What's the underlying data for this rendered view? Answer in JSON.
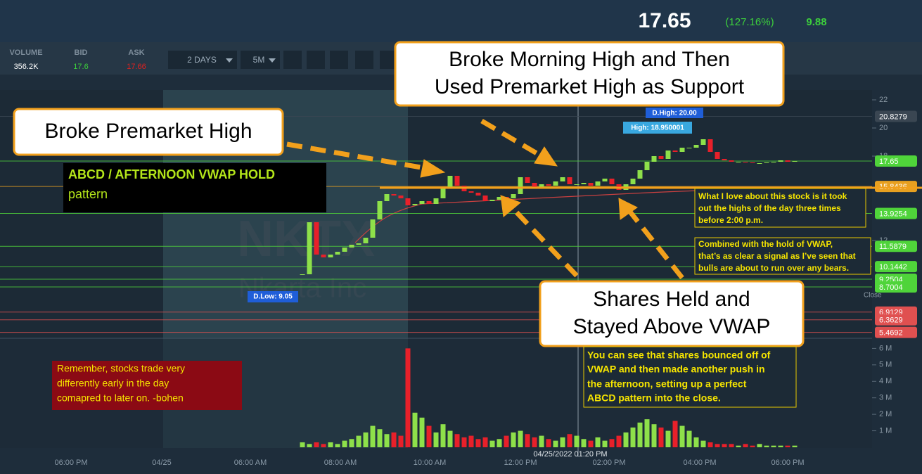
{
  "header": {
    "last": "17.65",
    "change": "(127.16%)",
    "extra": "9.88"
  },
  "toolbar": {
    "volume_label": "VOLUME",
    "volume": "356.2K",
    "bid_label": "BID",
    "bid": "17.6",
    "ask_label": "ASK",
    "ask": "17.66",
    "range": "2 DAYS",
    "interval": "5M"
  },
  "chart": {
    "type": "candlestick",
    "watermark_symbol": "NKTX",
    "watermark_name": "Nkarta Inc",
    "ylim": [
      5.1,
      22.7
    ],
    "yticks": [
      22,
      20,
      18,
      12
    ],
    "levels": [
      {
        "value": 20.8279,
        "color": "#3a4652"
      },
      {
        "value": 17.65,
        "color": "#4fd43a"
      },
      {
        "value": 15.8436,
        "color": "#e8a020"
      },
      {
        "value": 13.9254,
        "color": "#4fd43a"
      },
      {
        "value": 11.5879,
        "color": "#4fd43a"
      },
      {
        "value": 10.1442,
        "color": "#4fd43a"
      },
      {
        "value": 9.2504,
        "color": "#4fd43a"
      },
      {
        "value": 8.7004,
        "color": "#4fd43a"
      },
      {
        "value": 6.9129,
        "color": "#e05050"
      },
      {
        "value": 6.3629,
        "color": "#e05050"
      },
      {
        "value": 5.4692,
        "color": "#e05050"
      }
    ],
    "close_label": "Close",
    "d_high": "D.High: 20.00",
    "high": "High: 18.950001",
    "d_low": "D.Low: 9.05",
    "up_color": "#8ee04a",
    "down_color": "#e8202a",
    "closes": [
      9.6,
      13.3,
      11.0,
      10.8,
      11.0,
      11.2,
      11.5,
      11.7,
      11.8,
      12.2,
      13.5,
      14.8,
      15.3,
      15.2,
      15.0,
      14.5,
      14.6,
      14.8,
      14.6,
      15.0,
      15.8,
      16.6,
      15.9,
      15.5,
      15.4,
      15.2,
      14.8,
      14.9,
      15.1,
      15.0,
      15.3,
      16.5,
      16.1,
      15.8,
      16.0,
      15.9,
      16.2,
      16.5,
      16.0,
      16.0,
      16.1,
      15.9,
      16.2,
      16.4,
      16.0,
      15.6,
      16.0,
      16.4,
      17.0,
      17.6,
      18.0,
      17.8,
      18.4,
      18.3,
      18.6,
      18.6,
      18.8,
      19.2,
      18.3,
      17.8,
      17.7,
      17.6,
      17.6,
      17.55,
      17.5,
      17.5,
      17.55,
      17.6,
      17.7,
      17.6,
      17.65
    ],
    "vlim": [
      0,
      6.4
    ],
    "volume_ticks": [
      {
        "value": 6,
        "label": "6 M"
      },
      {
        "value": 5,
        "label": "5 M"
      },
      {
        "value": 4,
        "label": "4 M"
      },
      {
        "value": 3,
        "label": "3 M"
      },
      {
        "value": 2,
        "label": "2 M"
      },
      {
        "value": 1,
        "label": "1 M"
      }
    ],
    "volumes": [
      0.3,
      0.2,
      0.3,
      0.2,
      0.3,
      0.2,
      0.4,
      0.5,
      0.7,
      0.9,
      1.3,
      1.1,
      0.8,
      0.9,
      0.7,
      6.0,
      2.1,
      1.8,
      1.3,
      0.9,
      1.4,
      1.0,
      0.8,
      0.6,
      0.7,
      0.5,
      0.6,
      0.4,
      0.5,
      0.7,
      0.9,
      1.0,
      0.8,
      0.6,
      0.7,
      0.5,
      0.4,
      0.6,
      0.8,
      0.7,
      0.5,
      0.4,
      0.6,
      0.4,
      0.5,
      0.7,
      0.9,
      1.2,
      1.5,
      1.7,
      1.4,
      1.2,
      1.0,
      1.6,
      1.3,
      1.0,
      0.6,
      0.4,
      0.3,
      0.2,
      0.2,
      0.2,
      0.1,
      0.2,
      0.1,
      0.2,
      0.1,
      0.1,
      0.1,
      0.1,
      0.1
    ],
    "time_labels": [
      "06:00 PM",
      "04/25",
      "06:00 AM",
      "08:00 AM",
      "10:00 AM",
      "12:00 PM",
      "02:00 PM",
      "04:00 PM",
      "06:00 PM"
    ],
    "crosshair_time": "04/25/2022 01:20 PM"
  },
  "annotations": {
    "premarket": "Broke Premarket High",
    "morning": [
      "Broke Morning High and Then",
      "Used Premarket High as Support"
    ],
    "vwap": [
      "Shares Held and",
      "Stayed Above VWAP"
    ],
    "pattern": [
      "ABCD / AFTERNOON VWAP HOLD",
      "pattern"
    ],
    "highs": [
      "What I love about this stock is it took",
      "out the highs of the day three times",
      "before 2:00 p.m."
    ],
    "signal": [
      "Combined with the hold of VWAP,",
      "that’s as clear a signal as I’ve seen that",
      "bulls are about to run over any bears."
    ],
    "bounce": [
      "You can see that shares bounced off of",
      "VWAP and then made another push in",
      "the afternoon, setting up a perfect",
      "ABCD pattern into the close."
    ],
    "remember": [
      "Remember, stocks trade very",
      "differently early in the day",
      "comapred to later on. -bohen"
    ]
  }
}
